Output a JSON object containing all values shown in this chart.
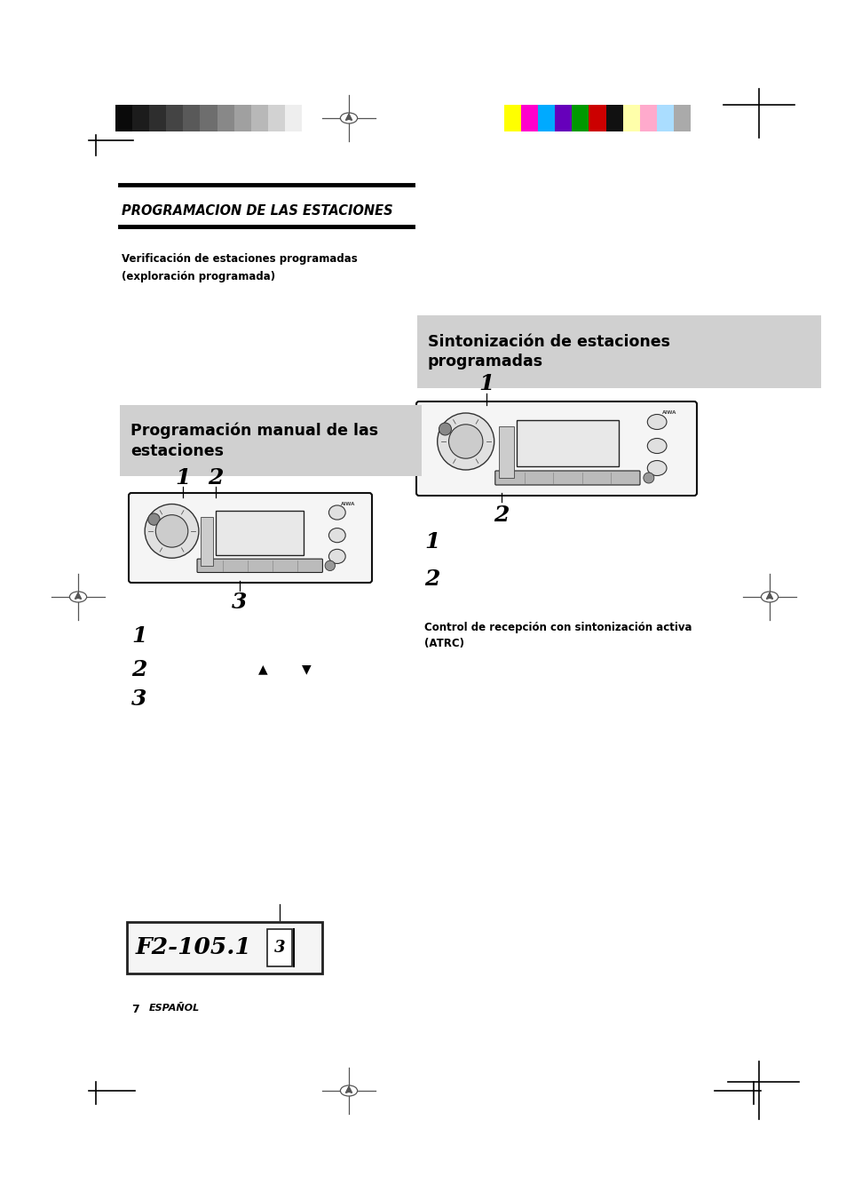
{
  "bg_color": "#ffffff",
  "page_width": 9.54,
  "page_height": 13.51,
  "title_bar": "PROGRAMACION DE LAS ESTACIONES",
  "section1_title": "Verificación de estaciones programadas\n(exploración programada)",
  "section2_header": "Programación manual de las\nestaciones",
  "section3_header": "Sintonización de estaciones\nprogramadas",
  "atrc_label": "Control de recepción con sintonización activa\n(ATRC)",
  "footer_label": "7",
  "footer_label2": "ESPAÑOL",
  "gray_header_color": "#d0d0d0",
  "black": "#000000",
  "colors_left": [
    "#0a0a0a",
    "#1c1c1c",
    "#2e2e2e",
    "#444444",
    "#595959",
    "#6e6e6e",
    "#888888",
    "#a0a0a0",
    "#b8b8b8",
    "#d2d2d2",
    "#eeeeee"
  ],
  "colors_right": [
    "#ffff00",
    "#ff00cc",
    "#00aaff",
    "#6600bb",
    "#009900",
    "#cc0000",
    "#111111",
    "#ffffaa",
    "#ffaacc",
    "#aaddff",
    "#aaaaaa"
  ],
  "crosshair_color": "#555555",
  "line_color": "#000000"
}
